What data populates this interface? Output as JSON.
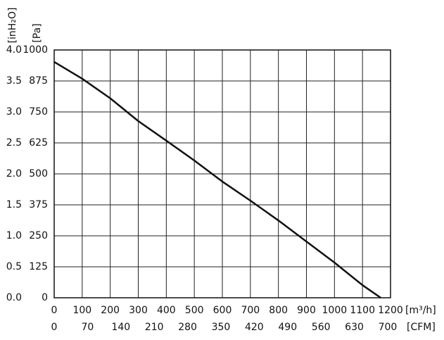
{
  "chart_data": {
    "type": "line",
    "y_label": "[Pa]",
    "y2_label": "[inH₂O]",
    "x_label": "[m³/h]",
    "x2_label": "[CFM]",
    "x": [
      0,
      100,
      200,
      300,
      400,
      500,
      600,
      700,
      800,
      900,
      1000,
      1100,
      1165
    ],
    "series": [
      {
        "color": "#111111",
        "values": [
          952,
          884,
          805,
          713,
          634,
          554,
          469,
          392,
          312,
          227,
          142,
          51,
          0
        ]
      }
    ],
    "xlim": [
      0,
      1200
    ],
    "xticks": [
      0,
      100,
      200,
      300,
      400,
      500,
      600,
      700,
      800,
      900,
      1000,
      1100,
      1200
    ],
    "x2lim": [
      0,
      706
    ],
    "x2ticks": [
      0,
      70,
      140,
      210,
      280,
      350,
      420,
      490,
      560,
      630,
      700
    ],
    "ylim": [
      0,
      1000
    ],
    "yticks": [
      0,
      125,
      250,
      375,
      500,
      625,
      750,
      875,
      1000
    ],
    "y2lim": [
      0,
      4
    ],
    "y2ticks": [
      {
        "value": 0,
        "label": "0.0"
      },
      {
        "value": 0.5,
        "label": "0.5"
      },
      {
        "value": 1,
        "label": "1.0"
      },
      {
        "value": 1.5,
        "label": "1.5"
      },
      {
        "value": 2,
        "label": "2.0"
      },
      {
        "value": 2.5,
        "label": "2.5"
      },
      {
        "value": 3,
        "label": "3.0"
      },
      {
        "value": 3.5,
        "label": "3.5"
      },
      {
        "value": 4,
        "label": "4.0"
      }
    ],
    "grid": true
  }
}
